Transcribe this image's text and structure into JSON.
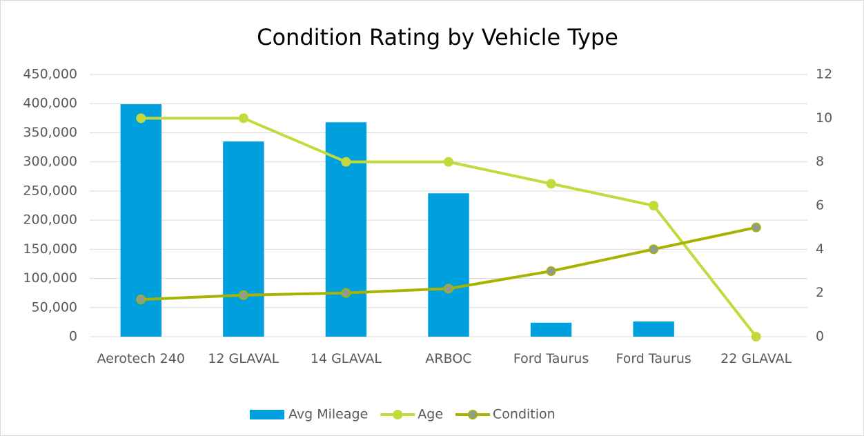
{
  "chart_data": {
    "type": "bar",
    "title": "Condition Rating by Vehicle Type",
    "categories": [
      "Aerotech 240",
      "12 GLAVAL",
      "14 GLAVAL",
      "ARBOC",
      "Ford Taurus",
      "Ford Taurus",
      "22 GLAVAL"
    ],
    "series": [
      {
        "name": "Avg Mileage",
        "type": "bar",
        "color": "#00a0df",
        "values": [
          399000,
          335000,
          368000,
          246000,
          24000,
          26000,
          null
        ]
      },
      {
        "name": "Age",
        "type": "line",
        "axis": "y2",
        "color": "#c4d93c",
        "marker_color": "#c4d93c",
        "values": [
          10,
          10,
          8,
          8,
          7,
          6,
          0
        ]
      },
      {
        "name": "Condition",
        "type": "line",
        "axis": "y2",
        "color": "#a7b300",
        "marker_color": "#8f9a9c",
        "values": [
          1.7,
          1.9,
          2.0,
          2.2,
          3.0,
          4.0,
          5.0
        ]
      }
    ],
    "ylim": [
      0,
      450000
    ],
    "yticks": [
      0,
      {
        "value": 50000,
        "label": "50,000"
      },
      {
        "value": 100000,
        "label": "100,000"
      },
      {
        "value": 150000,
        "label": "150,000"
      },
      {
        "value": 200000,
        "label": "200,000"
      },
      {
        "value": 250000,
        "label": "250,000"
      },
      {
        "value": 300000,
        "label": "300,000"
      },
      {
        "value": 350000,
        "label": "350,000"
      },
      {
        "value": 400000,
        "label": "400,000"
      },
      {
        "value": 450000,
        "label": "450,000"
      }
    ],
    "y2lim": [
      0,
      12
    ],
    "y2ticks": [
      0,
      2,
      4,
      6,
      8,
      10,
      12
    ],
    "grid": true,
    "legend": "bottom"
  }
}
